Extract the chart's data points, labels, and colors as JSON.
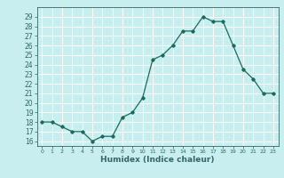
{
  "x": [
    0,
    1,
    2,
    3,
    4,
    5,
    6,
    7,
    8,
    9,
    10,
    11,
    12,
    13,
    14,
    15,
    16,
    17,
    18,
    19,
    20,
    21,
    22,
    23
  ],
  "y": [
    18,
    18,
    17.5,
    17,
    17,
    16,
    16.5,
    16.5,
    18.5,
    19,
    20.5,
    24.5,
    25,
    26,
    27.5,
    27.5,
    29,
    28.5,
    28.5,
    26,
    23.5,
    22.5,
    21,
    21
  ],
  "line_color": "#1a6b5a",
  "marker": "D",
  "marker_size": 1.8,
  "bg_color": "#c8eef0",
  "grid_color": "#ffffff",
  "xlabel": "Humidex (Indice chaleur)",
  "ylim": [
    15.5,
    30
  ],
  "yticks": [
    16,
    17,
    18,
    19,
    20,
    21,
    22,
    23,
    24,
    25,
    26,
    27,
    28,
    29
  ],
  "xlim": [
    -0.5,
    23.5
  ],
  "xticks": [
    0,
    1,
    2,
    3,
    4,
    5,
    6,
    7,
    8,
    9,
    10,
    11,
    12,
    13,
    14,
    15,
    16,
    17,
    18,
    19,
    20,
    21,
    22,
    23
  ],
  "xlabel_fontsize": 6.5,
  "tick_fontsize": 5.5,
  "axis_color": "#336666",
  "linewidth": 0.9
}
